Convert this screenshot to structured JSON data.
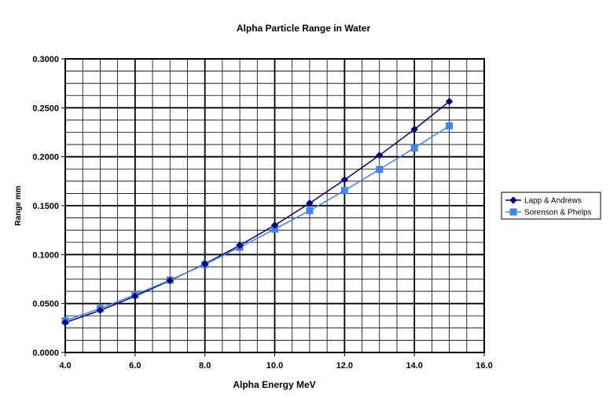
{
  "chart_data": {
    "type": "line",
    "title": "Alpha Particle Range in Water",
    "xlabel": "Alpha Energy MeV",
    "ylabel": "Range mm",
    "xlim": [
      4.0,
      16.0
    ],
    "ylim": [
      0.0,
      0.3
    ],
    "x_ticks": [
      "4.0",
      "6.0",
      "8.0",
      "10.0",
      "12.0",
      "14.0",
      "16.0"
    ],
    "y_ticks": [
      "0.0000",
      "0.0500",
      "0.1000",
      "0.1500",
      "0.2000",
      "0.2500",
      "0.3000"
    ],
    "x": [
      4,
      5,
      6,
      7,
      8,
      9,
      10,
      11,
      12,
      13,
      14,
      15
    ],
    "series": [
      {
        "name": "Lapp & Andrews",
        "color": "#00007f",
        "marker": "diamond",
        "values": [
          0.0305,
          0.043,
          0.0575,
          0.0735,
          0.0905,
          0.1095,
          0.13,
          0.1525,
          0.1765,
          0.2015,
          0.228,
          0.2565
        ]
      },
      {
        "name": "Sorenson & Phelps",
        "color": "#3f84f2",
        "marker": "square",
        "values": [
          0.0325,
          0.045,
          0.059,
          0.074,
          0.09,
          0.1075,
          0.126,
          0.145,
          0.1655,
          0.187,
          0.209,
          0.2315
        ]
      }
    ],
    "grid": true,
    "minor_grid": true,
    "legend_position": "right"
  }
}
